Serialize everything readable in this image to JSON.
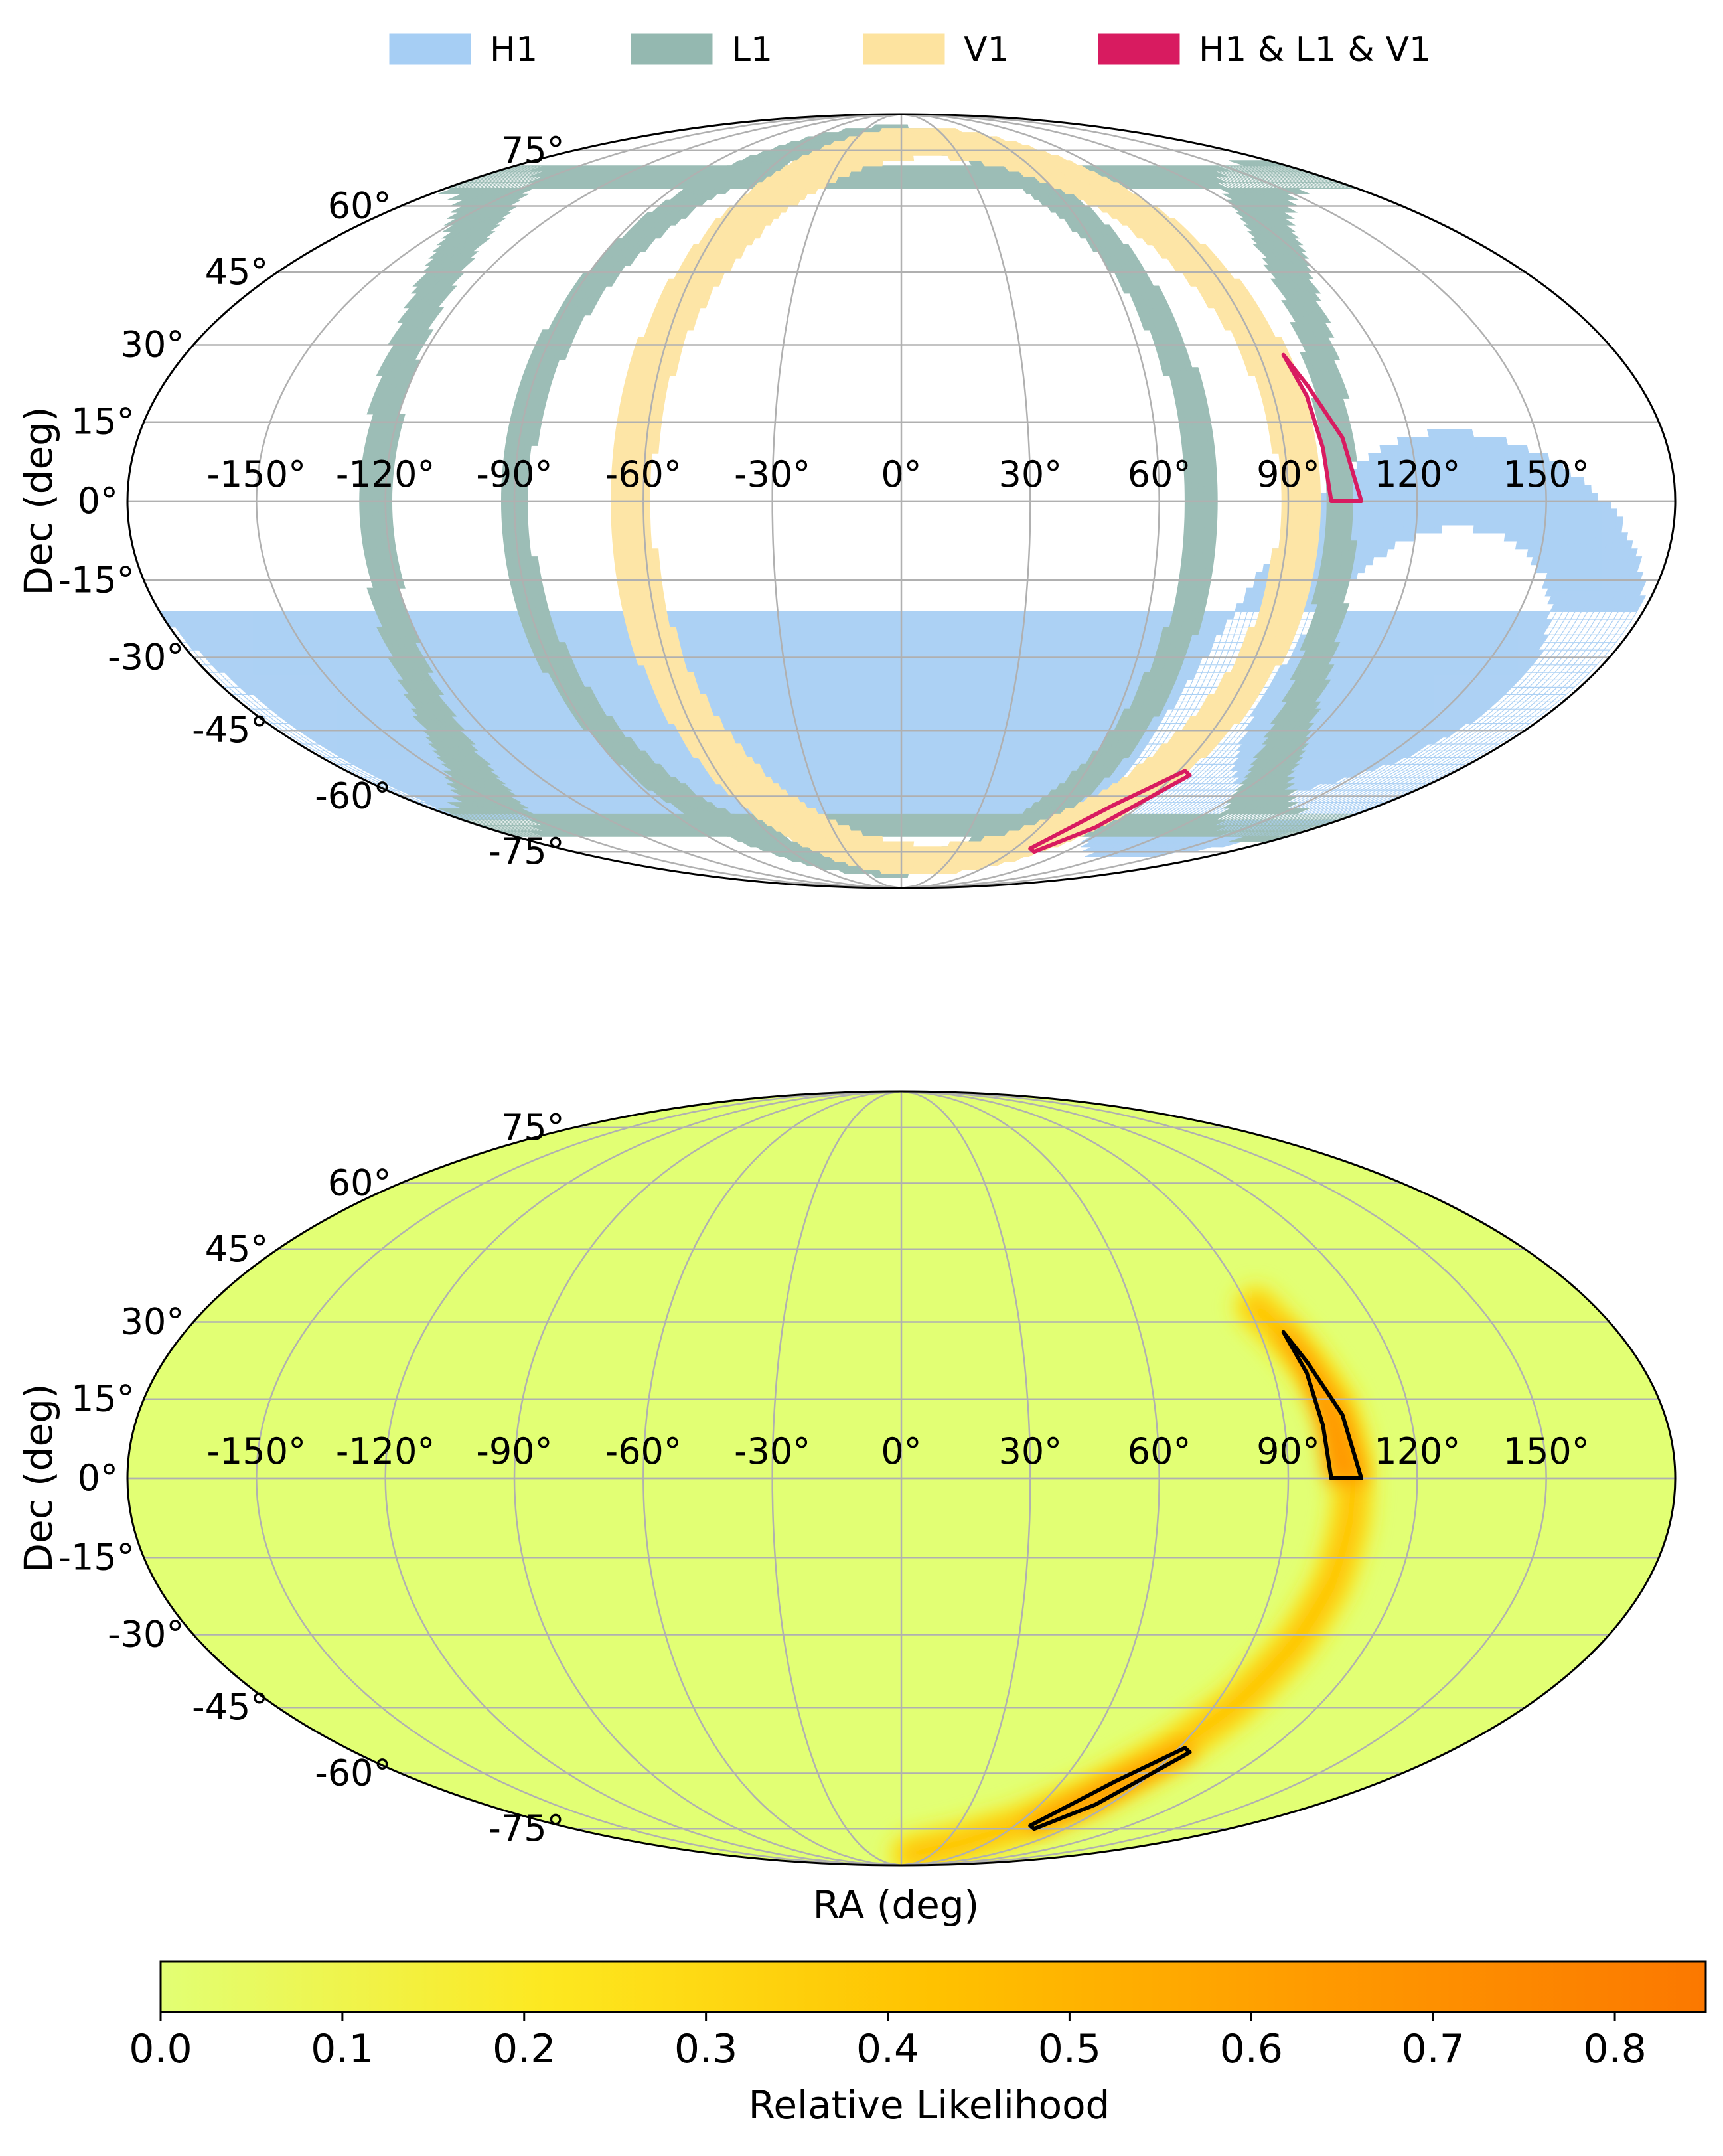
{
  "chart_data": [
    {
      "type": "area",
      "projection": "mollweide",
      "xlabel": "",
      "ylabel": "Dec (deg)",
      "ra_ticks": [
        "-150°",
        "-120°",
        "-90°",
        "-60°",
        "-30°",
        "0°",
        "30°",
        "60°",
        "90°",
        "120°",
        "150°"
      ],
      "ra_tick_values": [
        -150,
        -120,
        -90,
        -60,
        -30,
        0,
        30,
        60,
        90,
        120,
        150
      ],
      "dec_ticks": [
        "75°",
        "60°",
        "45°",
        "30°",
        "15°",
        "0°",
        "-15°",
        "-30°",
        "-45°",
        "-60°",
        "-75°"
      ],
      "dec_tick_values": [
        75,
        60,
        45,
        30,
        15,
        0,
        -15,
        -30,
        -45,
        -60,
        -75
      ],
      "grid": true,
      "legend_position": "top",
      "series": [
        {
          "name": "H1",
          "color": "#a6cef4",
          "band": {
            "pole_ra": 130,
            "pole_dec": -32,
            "radius": 36,
            "half_width": 9,
            "center_lon_offset": 0
          }
        },
        {
          "name": "L1",
          "color": "#94b8b0",
          "bands": [
            {
              "pole_ra": -10,
              "pole_dec": 0,
              "radius": 80,
              "half_width": 3.5
            },
            {
              "pole_ra": -10,
              "pole_dec": 0,
              "radius": 112,
              "half_width": 3.5
            }
          ]
        },
        {
          "name": "V1",
          "color": "#fde39f",
          "band": {
            "pole_ra": 15,
            "pole_dec": 0,
            "radius": 78,
            "half_width": 5
          }
        },
        {
          "name": "H1 & L1 & V1",
          "color": "#d81b60",
          "regions": [
            [
              [
                96,
                28
              ],
              [
                99,
                22
              ],
              [
                104,
                12
              ],
              [
                107,
                0
              ],
              [
                100,
                0
              ],
              [
                99,
                10
              ],
              [
                98,
                20
              ]
            ],
            [
              [
                92,
                -54
              ],
              [
                80,
                -62
              ],
              [
                68,
                -74
              ],
              [
                73,
                -75
              ],
              [
                84,
                -68
              ],
              [
                95,
                -55
              ]
            ]
          ]
        }
      ]
    },
    {
      "type": "heatmap",
      "projection": "mollweide",
      "xlabel": "RA (deg)",
      "ylabel": "Dec (deg)",
      "ra_ticks": [
        "-150°",
        "-120°",
        "-90°",
        "-60°",
        "-30°",
        "0°",
        "30°",
        "60°",
        "90°",
        "120°",
        "150°"
      ],
      "ra_tick_values": [
        -150,
        -120,
        -90,
        -60,
        -30,
        0,
        30,
        60,
        90,
        120,
        150
      ],
      "dec_ticks": [
        "75°",
        "60°",
        "45°",
        "30°",
        "15°",
        "0°",
        "-15°",
        "-30°",
        "-45°",
        "-60°",
        "-75°"
      ],
      "dec_tick_values": [
        75,
        60,
        45,
        30,
        15,
        0,
        -15,
        -30,
        -45,
        -60,
        -75
      ],
      "grid": true,
      "colorbar": {
        "label": "Relative Likelihood",
        "range": [
          0.0,
          0.85
        ],
        "ticks": [
          "0.0",
          "0.1",
          "0.2",
          "0.3",
          "0.4",
          "0.5",
          "0.6",
          "0.7",
          "0.8"
        ],
        "tick_values": [
          0,
          0.1,
          0.2,
          0.3,
          0.4,
          0.5,
          0.6,
          0.7,
          0.8
        ],
        "colors": [
          "#e2ff74",
          "#fde820",
          "#ffc200",
          "#ff9a00",
          "#fb7800"
        ]
      },
      "arc": [
        [
          92,
          33
        ],
        [
          98,
          24
        ],
        [
          103,
          14
        ],
        [
          105,
          3
        ],
        [
          105,
          -8
        ],
        [
          104,
          -20
        ],
        [
          101,
          -32
        ],
        [
          96,
          -44
        ],
        [
          88,
          -55
        ],
        [
          77,
          -65
        ],
        [
          62,
          -74
        ],
        [
          40,
          -80
        ],
        [
          10,
          -84
        ]
      ],
      "regions": [
        [
          [
            96,
            28
          ],
          [
            99,
            22
          ],
          [
            104,
            12
          ],
          [
            107,
            0
          ],
          [
            100,
            0
          ],
          [
            99,
            10
          ],
          [
            98,
            20
          ]
        ],
        [
          [
            92,
            -54
          ],
          [
            80,
            -62
          ],
          [
            68,
            -74
          ],
          [
            73,
            -75
          ],
          [
            84,
            -68
          ],
          [
            95,
            -55
          ]
        ]
      ]
    }
  ]
}
